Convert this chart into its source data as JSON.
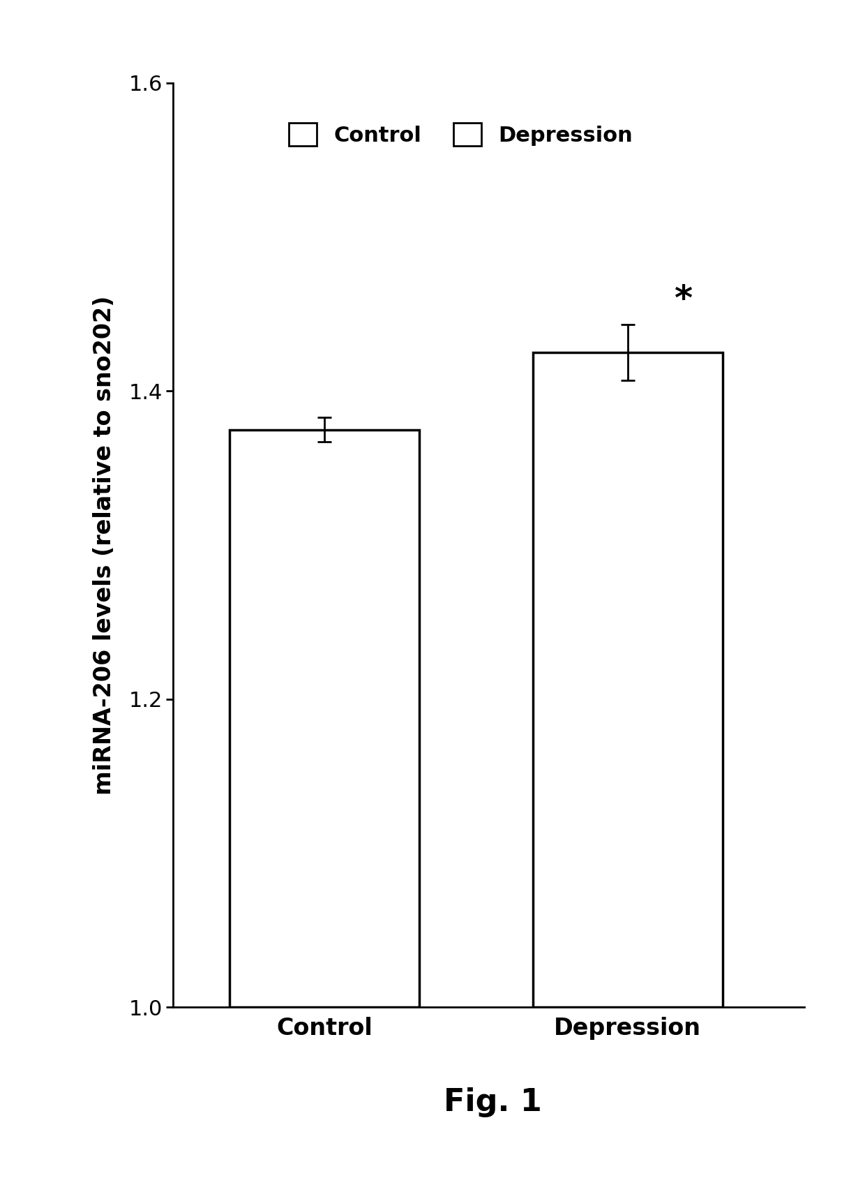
{
  "categories": [
    "Control",
    "Depression"
  ],
  "values": [
    1.375,
    1.425
  ],
  "errors": [
    0.008,
    0.018
  ],
  "bar_colors": [
    "#ffffff",
    "#ffffff"
  ],
  "bar_edgecolors": [
    "#000000",
    "#000000"
  ],
  "bar_linewidth": 2.5,
  "ylim": [
    1.0,
    1.6
  ],
  "yticks": [
    1.0,
    1.2,
    1.4,
    1.6
  ],
  "ylabel": "miRNA-206 levels (relative to sno202)",
  "ylabel_fontsize": 24,
  "xlabel_fontsize": 24,
  "tick_fontsize": 22,
  "legend_fontsize": 22,
  "legend_labels": [
    "Control",
    "Depression"
  ],
  "significance_label": "*",
  "significance_fontsize": 36,
  "fig_caption": "Fig. 1",
  "fig_caption_fontsize": 32,
  "bar_width": 0.75,
  "x_positions": [
    1.0,
    2.2
  ],
  "xlim": [
    0.4,
    2.9
  ],
  "background_color": "#ffffff"
}
